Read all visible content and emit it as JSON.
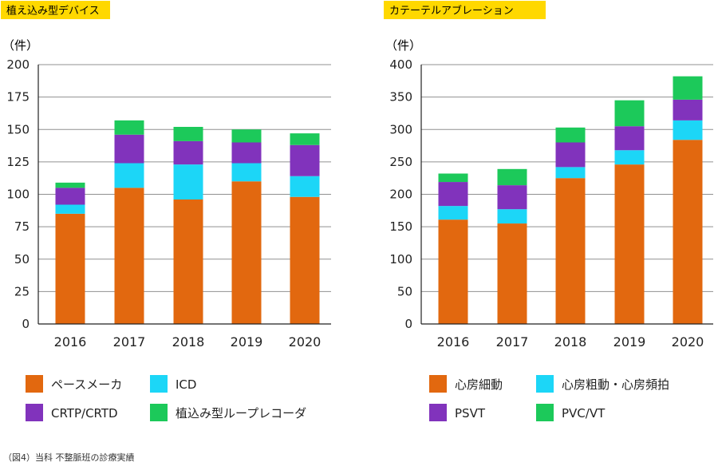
{
  "caption": "（図4）当科 不整脈班の診療実績",
  "colors": {
    "title_bg": "#FFD800",
    "grid": "#909090",
    "axis": "#222222"
  },
  "chart_data": [
    {
      "type": "bar",
      "stacked": true,
      "title": "植え込み型デバイス",
      "ylabel": "（件）",
      "xlabel": "",
      "categories": [
        "2016",
        "2017",
        "2018",
        "2019",
        "2020"
      ],
      "ylim": [
        0,
        200
      ],
      "yticks": [
        0,
        25,
        50,
        75,
        100,
        125,
        150,
        175,
        200
      ],
      "grid": true,
      "legend_position": "bottom",
      "series": [
        {
          "name": "ペースメーカ",
          "color": "#E2680F",
          "values": [
            85,
            105,
            96,
            110,
            98
          ]
        },
        {
          "name": "ICD",
          "color": "#1CD6F7",
          "values": [
            7,
            19,
            27,
            14,
            16
          ]
        },
        {
          "name": "CRTP/CRTD",
          "color": "#8133BC",
          "values": [
            13,
            22,
            18,
            16,
            24
          ]
        },
        {
          "name": "植込み型ループレコーダ",
          "color": "#1CC95A",
          "values": [
            4,
            11,
            11,
            10,
            9
          ]
        }
      ]
    },
    {
      "type": "bar",
      "stacked": true,
      "title": "カテーテルアブレーション",
      "ylabel": "（件）",
      "xlabel": "",
      "categories": [
        "2016",
        "2017",
        "2018",
        "2019",
        "2020"
      ],
      "ylim": [
        0,
        400
      ],
      "yticks": [
        0,
        50,
        100,
        150,
        200,
        250,
        300,
        350,
        400
      ],
      "grid": true,
      "legend_position": "bottom",
      "series": [
        {
          "name": "心房細動",
          "color": "#E2680F",
          "values": [
            161,
            155,
            225,
            246,
            284
          ]
        },
        {
          "name": "心房粗動・心房頻拍",
          "color": "#1CD6F7",
          "values": [
            21,
            22,
            17,
            22,
            30
          ]
        },
        {
          "name": "PSVT",
          "color": "#8133BC",
          "values": [
            37,
            37,
            38,
            37,
            32
          ]
        },
        {
          "name": "PVC/VT",
          "color": "#1CC95A",
          "values": [
            13,
            25,
            23,
            40,
            36
          ]
        }
      ]
    }
  ]
}
